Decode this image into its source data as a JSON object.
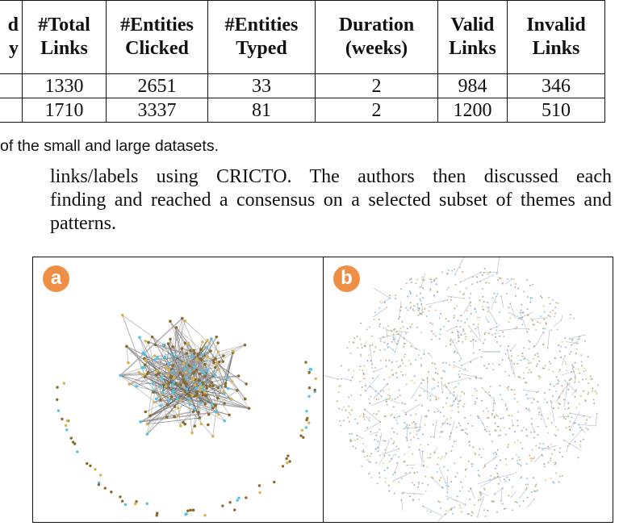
{
  "table": {
    "headers": [
      [
        "d",
        "y"
      ],
      [
        "#Total",
        "Links"
      ],
      [
        "#Entities",
        "Clicked"
      ],
      [
        "#Entities",
        "Typed"
      ],
      [
        "Duration",
        "(weeks)"
      ],
      [
        "Valid",
        "Links"
      ],
      [
        "Invalid",
        "Links"
      ]
    ],
    "rows": [
      [
        "",
        "1330",
        "2651",
        "33",
        "2",
        "984",
        "346"
      ],
      [
        "",
        "1710",
        "3337",
        "81",
        "2",
        "1200",
        "510"
      ]
    ]
  },
  "caption": "of the small and large datasets.",
  "paragraph": [
    "links/labels using CRICTO. The authors then discussed each",
    "finding and reached a consensus on a selected subset of themes and",
    "patterns."
  ],
  "figure": {
    "panel_a_label": "a",
    "panel_b_label": "b",
    "colors": {
      "badge": "#ef8f45",
      "node_brown": "#8a6a2a",
      "node_gold": "#d9b34a",
      "node_cyan": "#4fc3e8",
      "edge_gray": "#777777"
    }
  }
}
